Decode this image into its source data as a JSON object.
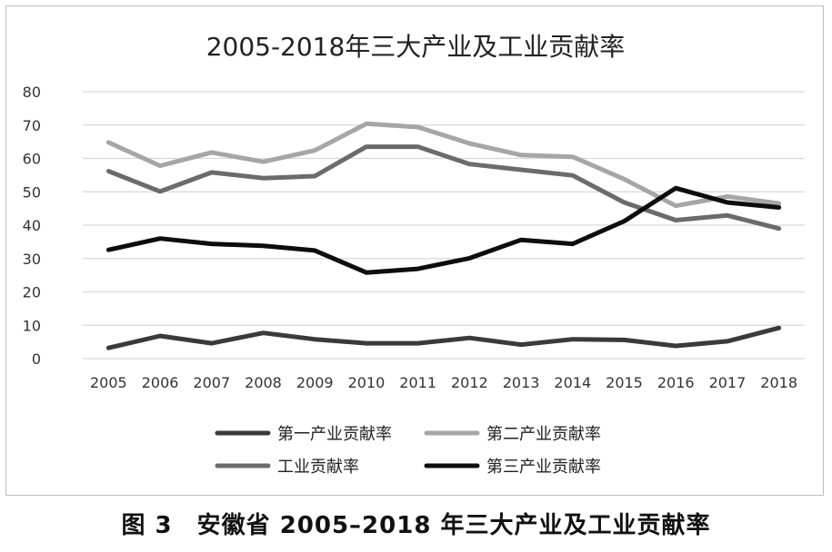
{
  "figure_caption": "图 3　安徽省 2005–2018 年三大产业及工业贡献率",
  "chart_data": {
    "type": "line",
    "title": "2005-2018年三大产业及工业贡献率",
    "xlabel": "",
    "ylabel": "",
    "categories": [
      "2005",
      "2006",
      "2007",
      "2008",
      "2009",
      "2010",
      "2011",
      "2012",
      "2013",
      "2014",
      "2015",
      "2016",
      "2017",
      "2018"
    ],
    "ylim": [
      0,
      80
    ],
    "yticks": [
      "0",
      "10",
      "20",
      "30",
      "40",
      "50",
      "60",
      "70",
      "80"
    ],
    "grid": true,
    "legend_position": "bottom",
    "series": [
      {
        "name": "第一产业贡献率",
        "color": "#3a3a3a",
        "values": [
          3.2,
          6.8,
          4.6,
          7.7,
          5.8,
          4.6,
          4.6,
          6.2,
          4.2,
          5.8,
          5.6,
          3.8,
          5.2,
          9.2
        ]
      },
      {
        "name": "第二产业贡献率",
        "color": "#a6a6a6",
        "values": [
          64.8,
          57.8,
          61.8,
          59.0,
          62.4,
          70.4,
          69.4,
          64.5,
          61.0,
          60.5,
          53.8,
          45.8,
          48.6,
          46.5
        ]
      },
      {
        "name": "工业贡献率",
        "color": "#6b6b6b",
        "values": [
          56.2,
          50.1,
          55.8,
          54.1,
          54.7,
          63.5,
          63.5,
          58.3,
          56.6,
          54.9,
          46.8,
          41.5,
          42.9,
          39.0
        ]
      },
      {
        "name": "第三产业贡献率",
        "color": "#0d0d0d",
        "values": [
          32.6,
          36.0,
          34.4,
          33.8,
          32.4,
          25.8,
          26.9,
          30.1,
          35.6,
          34.4,
          41.2,
          51.1,
          46.8,
          45.3
        ]
      }
    ]
  }
}
